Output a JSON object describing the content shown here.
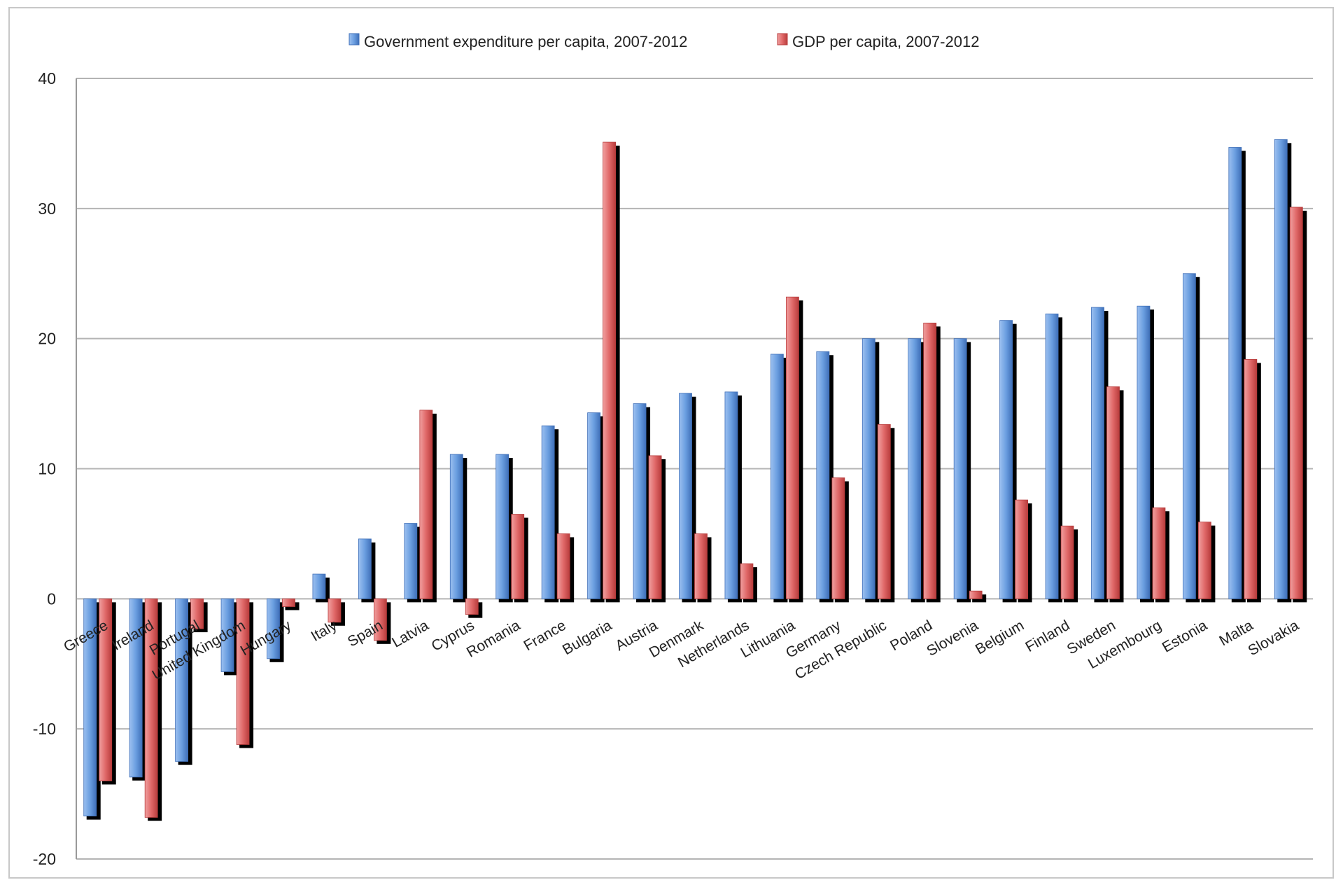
{
  "chart_data": {
    "type": "bar",
    "categories": [
      "Greece",
      "Ireland",
      "Portugal",
      "United Kingdom",
      "Hungary",
      "Italy",
      "Spain",
      "Latvia",
      "Cyprus",
      "Romania",
      "France",
      "Bulgaria",
      "Austria",
      "Denmark",
      "Netherlands",
      "Lithuania",
      "Germany",
      "Czech Republic",
      "Poland",
      "Slovenia",
      "Belgium",
      "Finland",
      "Sweden",
      "Luxembourg",
      "Estonia",
      "Malta",
      "Slovakia"
    ],
    "series": [
      {
        "name": "Government expenditure per capita, 2007-2012",
        "color": "#5b8fd6",
        "values": [
          -16.7,
          -13.7,
          -12.5,
          -5.6,
          -4.6,
          1.9,
          4.6,
          5.8,
          11.1,
          11.1,
          13.3,
          14.3,
          15.0,
          15.8,
          15.9,
          18.8,
          19.0,
          20.0,
          20.0,
          20.0,
          21.4,
          21.9,
          22.4,
          22.5,
          25.0,
          34.7,
          35.3
        ]
      },
      {
        "name": "GDP per capita, 2007-2012",
        "color": "#d65f5f",
        "values": [
          -14.0,
          -16.8,
          -2.3,
          -11.2,
          -0.6,
          -1.8,
          -3.2,
          14.5,
          -1.2,
          6.5,
          5.0,
          35.1,
          11.0,
          5.0,
          2.7,
          23.2,
          9.3,
          13.4,
          21.2,
          0.6,
          7.6,
          5.6,
          16.3,
          7.0,
          5.9,
          18.4,
          30.1
        ]
      }
    ],
    "yticks": [
      "40",
      "30",
      "20",
      "10",
      "0",
      "-10",
      "-20"
    ],
    "ylim": [
      -20,
      40
    ],
    "grid": true,
    "legend": "top-center"
  }
}
